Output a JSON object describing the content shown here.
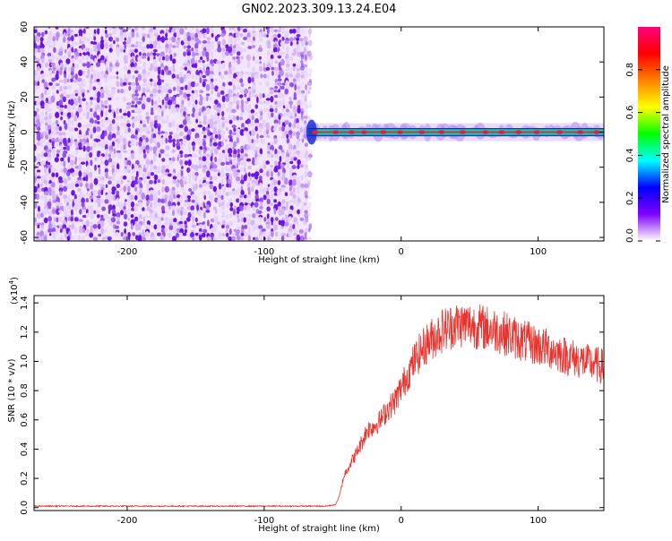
{
  "title": "GN02.2023.309.13.24.E04",
  "colors": {
    "spectrogram_noise": "#7a28e6",
    "spectrogram_light": "#d9b8f5",
    "snr_line": "#e8332e",
    "trace_core": "#e61e3c"
  },
  "chart_data": [
    {
      "type": "heatmap",
      "xlabel": "Height of straight line (km)",
      "ylabel": "Frequency (Hz)",
      "xlim": [
        -268,
        148
      ],
      "ylim": [
        -62,
        60
      ],
      "x_ticks": [
        -200,
        -100,
        0,
        100
      ],
      "y_ticks": [
        -60,
        -40,
        -20,
        0,
        20,
        40,
        60
      ],
      "noise_region_x": [
        -268,
        -68
      ],
      "signal_line": {
        "frequency": 0,
        "x_start": -68,
        "x_end": 148
      },
      "colorbar": {
        "label": "Normalized spectral amplitude",
        "ticks": [
          0.0,
          0.2,
          0.4,
          0.6,
          0.8
        ],
        "range": [
          0,
          1
        ],
        "colormap": [
          "#ffffff",
          "#8000ff",
          "#0000ff",
          "#00ffff",
          "#00ff00",
          "#ffff00",
          "#ff8000",
          "#ff0000",
          "#ff0080"
        ]
      }
    },
    {
      "type": "line",
      "xlabel": "Height of straight line (km)",
      "ylabel": "SNR (10 * v/v)",
      "y_multiplier": "(x10",
      "y_multiplier_exp": "4",
      "y_multiplier_close": ")",
      "xlim": [
        -268,
        148
      ],
      "ylim": [
        -0.02,
        1.45
      ],
      "x_ticks": [
        -200,
        -100,
        0,
        100
      ],
      "y_ticks": [
        "0.0",
        "0.2",
        "0.4",
        "0.6",
        "0.8",
        "1.0",
        "1.2",
        "1.4"
      ],
      "series": [
        {
          "points": [
            [
              -268,
              0.01
            ],
            [
              -200,
              0.01
            ],
            [
              -100,
              0.01
            ],
            [
              -55,
              0.01
            ],
            [
              -48,
              0.02
            ],
            [
              -45,
              0.08
            ],
            [
              -42,
              0.22
            ],
            [
              -38,
              0.3
            ],
            [
              -33,
              0.38
            ],
            [
              -28,
              0.48
            ],
            [
              -25,
              0.55
            ],
            [
              -20,
              0.58
            ],
            [
              -15,
              0.62
            ],
            [
              -10,
              0.7
            ],
            [
              -5,
              0.75
            ],
            [
              0,
              0.85
            ],
            [
              5,
              0.95
            ],
            [
              10,
              1.05
            ],
            [
              15,
              1.12
            ],
            [
              20,
              1.18
            ],
            [
              25,
              1.22
            ],
            [
              30,
              1.26
            ],
            [
              40,
              1.3
            ],
            [
              50,
              1.3
            ],
            [
              60,
              1.28
            ],
            [
              70,
              1.26
            ],
            [
              80,
              1.22
            ],
            [
              90,
              1.18
            ],
            [
              100,
              1.15
            ],
            [
              110,
              1.12
            ],
            [
              120,
              1.08
            ],
            [
              130,
              1.05
            ],
            [
              140,
              1.02
            ],
            [
              148,
              1.0
            ]
          ]
        }
      ]
    }
  ]
}
